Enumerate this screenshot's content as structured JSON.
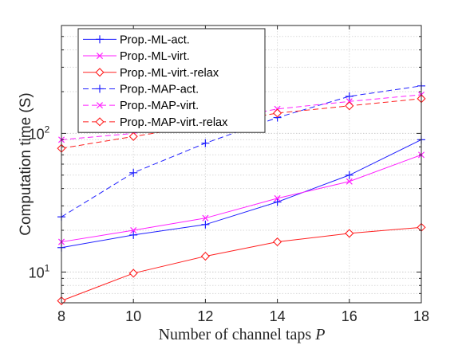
{
  "chart_data": {
    "type": "line",
    "title": "",
    "xlabel": "Number of channel taps",
    "xlabel_var": "P",
    "ylabel": "Computation time (S)",
    "x": [
      8,
      10,
      12,
      14,
      16,
      18
    ],
    "x_ticks": [
      "8",
      "10",
      "12",
      "14",
      "16",
      "18"
    ],
    "xlim": [
      8,
      18
    ],
    "yscale": "log",
    "ylim": [
      6,
      600
    ],
    "y_tick_labels": [
      {
        "value": 10,
        "base": "10",
        "exp": "1"
      },
      {
        "value": 100,
        "base": "10",
        "exp": "2"
      }
    ],
    "grid": true,
    "legend_position": "top-left",
    "series": [
      {
        "name": "Prop.-ML-act.",
        "color": "#1f1fff",
        "dash": "solid",
        "marker": "plus",
        "values": [
          15,
          18.5,
          22,
          32,
          50,
          90
        ]
      },
      {
        "name": "Prop.-ML-virt.",
        "color": "#ff1fff",
        "dash": "solid",
        "marker": "x",
        "values": [
          16.5,
          20,
          24.5,
          34,
          45,
          70
        ]
      },
      {
        "name": "Prop.-ML-virt.-relax",
        "color": "#ff2020",
        "dash": "solid",
        "marker": "diamond",
        "values": [
          6.2,
          9.8,
          13,
          16.5,
          19,
          21
        ]
      },
      {
        "name": "Prop.-MAP-act.",
        "color": "#1f1fff",
        "dash": "dashed",
        "marker": "plus",
        "values": [
          25,
          52,
          85,
          130,
          185,
          220
        ]
      },
      {
        "name": "Prop.-MAP-virt.",
        "color": "#ff1fff",
        "dash": "dashed",
        "marker": "x",
        "values": [
          90,
          100,
          120,
          150,
          170,
          190
        ]
      },
      {
        "name": "Prop.-MAP-virt.-relax",
        "color": "#ff2020",
        "dash": "dashed",
        "marker": "diamond",
        "values": [
          78,
          95,
          115,
          140,
          158,
          178
        ]
      }
    ]
  }
}
